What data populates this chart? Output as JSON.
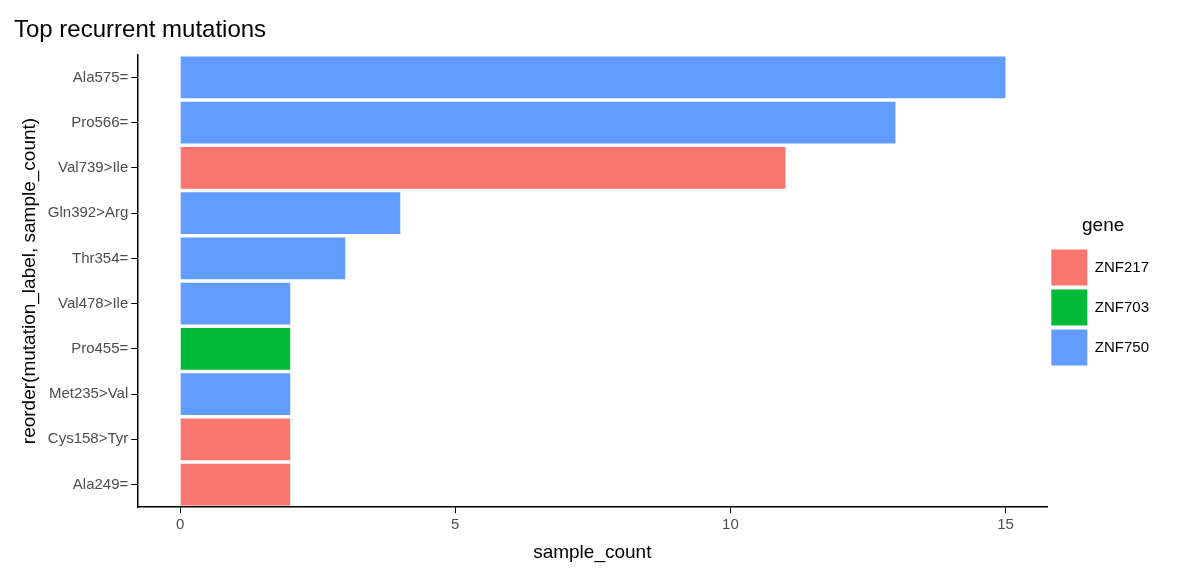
{
  "chart_data": {
    "type": "bar",
    "orientation": "horizontal",
    "stacked": true,
    "title": "Top recurrent mutations",
    "xlabel": "sample_count",
    "ylabel": "reorder(mutation_label, sample_count)",
    "legend_title": "gene",
    "legend": "right",
    "grid": false,
    "categories": [
      "Ala575=",
      "Pro566=",
      "Val739>Ile",
      "Gln392>Arg",
      "Thr354=",
      "Val478>Ile",
      "Pro455=",
      "Met235>Val",
      "Cys158>Tyr",
      "Ala249="
    ],
    "series": [
      {
        "name": "ZNF217",
        "color": "#f8766d",
        "values": [
          null,
          null,
          11,
          null,
          null,
          null,
          null,
          null,
          2,
          2
        ]
      },
      {
        "name": "ZNF703",
        "color": "#00ba38",
        "values": [
          null,
          null,
          null,
          null,
          null,
          null,
          2,
          null,
          null,
          null
        ]
      },
      {
        "name": "ZNF750",
        "color": "#619cff",
        "values": [
          15,
          13,
          null,
          4,
          3,
          2,
          null,
          2,
          null,
          null
        ]
      }
    ],
    "xlim": [
      -0.78,
      15.76
    ],
    "xticks": [
      0,
      5,
      10,
      15
    ]
  }
}
